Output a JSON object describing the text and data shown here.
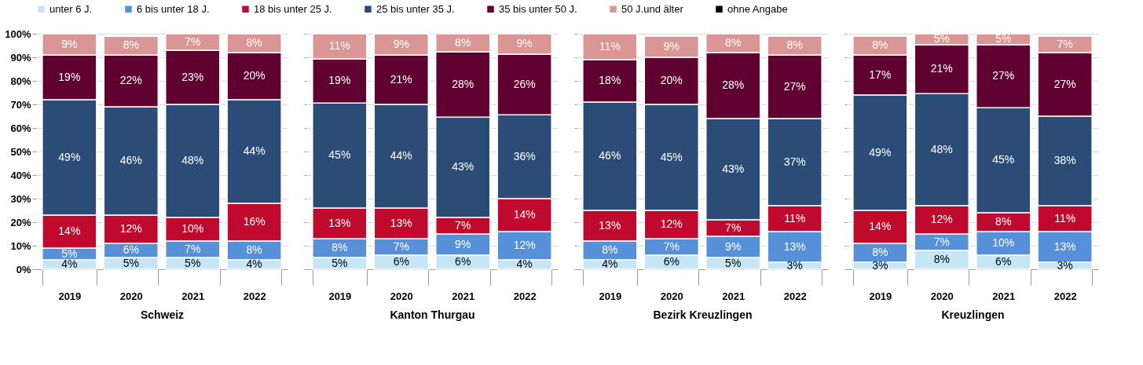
{
  "chart_data": [
    {
      "type": "bar",
      "stacked": true,
      "xlabel": "Schweiz",
      "categories": [
        "2019",
        "2020",
        "2021",
        "2022"
      ],
      "ylim": [
        0,
        100
      ],
      "yticks": [
        {
          "value": 0,
          "label": "0%"
        },
        {
          "value": 10,
          "label": "10%"
        },
        {
          "value": 20,
          "label": "20%"
        },
        {
          "value": 30,
          "label": "30%"
        },
        {
          "value": 40,
          "label": "40%"
        },
        {
          "value": 50,
          "label": "50%"
        },
        {
          "value": 60,
          "label": "60%"
        },
        {
          "value": 70,
          "label": "70%"
        },
        {
          "value": 80,
          "label": "80%"
        },
        {
          "value": 90,
          "label": "90%"
        },
        {
          "value": 100,
          "label": "100%"
        }
      ],
      "grid": "y",
      "legend": "top",
      "series": [
        {
          "name": "unter 6 J.",
          "color": "#c5e6f7",
          "values": [
            4,
            5,
            5,
            4
          ],
          "value_labels": [
            "4%",
            "5%",
            "5%",
            "4%"
          ]
        },
        {
          "name": "6 bis unter 18 J.",
          "color": "#5590d9",
          "values": [
            5,
            6,
            7,
            8
          ],
          "value_labels": [
            "5%",
            "6%",
            "7%",
            "8%"
          ]
        },
        {
          "name": "18 bis unter 25 J.",
          "color": "#bf0a2e",
          "values": [
            14,
            12,
            10,
            16
          ],
          "value_labels": [
            "14%",
            "12%",
            "10%",
            "16%"
          ]
        },
        {
          "name": "25 bis unter 35 J.",
          "color": "#2b4c76",
          "values": [
            49,
            46,
            48,
            44
          ],
          "value_labels": [
            "49%",
            "46%",
            "48%",
            "44%"
          ]
        },
        {
          "name": "35 bis unter 50 J.",
          "color": "#600030",
          "values": [
            19,
            22,
            23,
            20
          ],
          "value_labels": [
            "19%",
            "22%",
            "23%",
            "20%"
          ]
        },
        {
          "name": "50 J.und älter",
          "color": "#d99694",
          "values": [
            9,
            8,
            7,
            8
          ],
          "value_labels": [
            "9%",
            "8%",
            "7%",
            "8%"
          ]
        },
        {
          "name": "ohne Angabe",
          "color": "#000000",
          "values": [
            null,
            0.3,
            null,
            null
          ]
        }
      ]
    },
    {
      "type": "bar",
      "stacked": true,
      "xlabel": "Kanton Thurgau",
      "categories": [
        "2019",
        "2020",
        "2021",
        "2022"
      ],
      "ylim": [
        0,
        100
      ],
      "yticks": [
        0,
        10,
        20,
        30,
        40,
        50,
        60,
        70,
        80,
        90,
        100
      ],
      "grid": "y",
      "tick_labels": "x",
      "series": [
        {
          "color": "#c5e6f7",
          "values": [
            5,
            6,
            6,
            4
          ],
          "value_labels": [
            "5%",
            "6%",
            "6%",
            "4%"
          ]
        },
        {
          "color": "#5590d9",
          "values": [
            8,
            7,
            9,
            12
          ],
          "value_labels": [
            "8%",
            "7%",
            "9%",
            "12%"
          ]
        },
        {
          "color": "#bf0a2e",
          "values": [
            13,
            13,
            7,
            14
          ],
          "value_labels": [
            "13%",
            "13%",
            "7%",
            "14%"
          ]
        },
        {
          "color": "#2b4c76",
          "values": [
            44.6,
            44,
            42.6,
            35.6
          ],
          "value_labels": [
            "45%",
            "44%",
            "43%",
            "36%"
          ]
        },
        {
          "color": "#600030",
          "values": [
            18.7,
            21,
            27.7,
            25.7
          ],
          "value_labels": [
            "19%",
            "21%",
            "28%",
            "26%"
          ]
        },
        {
          "color": "#d99694",
          "values": [
            10.7,
            9,
            7.7,
            8.7
          ],
          "value_labels": [
            "11%",
            "9%",
            "8%",
            "9%"
          ]
        },
        {
          "color": "#000000",
          "values": [
            null,
            0.3,
            null,
            null
          ]
        }
      ]
    },
    {
      "type": "bar",
      "stacked": true,
      "xlabel": "Bezirk Kreuzlingen",
      "categories": [
        "2019",
        "2020",
        "2021",
        "2022"
      ],
      "ylim": [
        0,
        100
      ],
      "yticks": [
        0,
        10,
        20,
        30,
        40,
        50,
        60,
        70,
        80,
        90,
        100
      ],
      "grid": "y",
      "tick_labels": "x",
      "series": [
        {
          "color": "#c5e6f7",
          "values": [
            4,
            6,
            5,
            3
          ],
          "value_labels": [
            "4%",
            "6%",
            "5%",
            "3%"
          ]
        },
        {
          "color": "#5590d9",
          "values": [
            8,
            7,
            9,
            13
          ],
          "value_labels": [
            "8%",
            "7%",
            "9%",
            "13%"
          ]
        },
        {
          "color": "#bf0a2e",
          "values": [
            13,
            12,
            7,
            11
          ],
          "value_labels": [
            "13%",
            "12%",
            "7%",
            "11%"
          ]
        },
        {
          "color": "#2b4c76",
          "values": [
            46,
            45,
            43,
            37
          ],
          "value_labels": [
            "46%",
            "45%",
            "43%",
            "37%"
          ]
        },
        {
          "color": "#600030",
          "values": [
            18,
            20,
            28,
            27
          ],
          "value_labels": [
            "18%",
            "20%",
            "28%",
            "27%"
          ]
        },
        {
          "color": "#d99694",
          "values": [
            11,
            9,
            8,
            8
          ],
          "value_labels": [
            "11%",
            "9%",
            "8%",
            "8%"
          ]
        }
      ]
    },
    {
      "type": "bar",
      "stacked": true,
      "xlabel": "Kreuzlingen",
      "categories": [
        "2019",
        "2020",
        "2021",
        "2022"
      ],
      "ylim": [
        0,
        100
      ],
      "yticks": [
        0,
        10,
        20,
        30,
        40,
        50,
        60,
        70,
        80,
        90,
        100
      ],
      "grid": "y",
      "tick_labels": "x",
      "series": [
        {
          "color": "#c5e6f7",
          "values": [
            3,
            8,
            6,
            3
          ],
          "value_labels": [
            "3%",
            "8%",
            "6%",
            "3%"
          ]
        },
        {
          "color": "#5590d9",
          "values": [
            8,
            7,
            10,
            13
          ],
          "value_labels": [
            "8%",
            "7%",
            "10%",
            "13%"
          ]
        },
        {
          "color": "#bf0a2e",
          "values": [
            14,
            12,
            8,
            11
          ],
          "value_labels": [
            "14%",
            "12%",
            "8%",
            "11%"
          ]
        },
        {
          "color": "#2b4c76",
          "values": [
            49,
            47.6,
            44.6,
            38
          ],
          "value_labels": [
            "49%",
            "48%",
            "45%",
            "38%"
          ]
        },
        {
          "color": "#600030",
          "values": [
            17,
            20.7,
            26.7,
            27
          ],
          "value_labels": [
            "17%",
            "21%",
            "27%",
            "27%"
          ]
        },
        {
          "color": "#d99694",
          "values": [
            8,
            4.7,
            4.7,
            7
          ],
          "value_labels": [
            "8%",
            "5%",
            "5%",
            "7%"
          ]
        }
      ]
    }
  ]
}
